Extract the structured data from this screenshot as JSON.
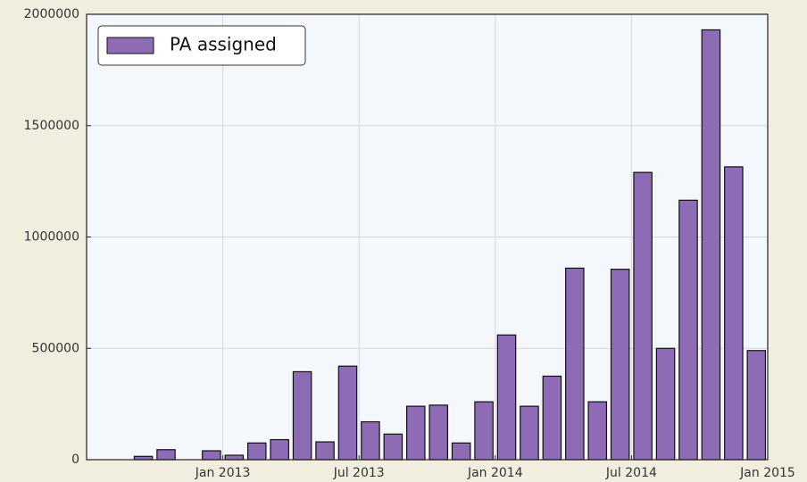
{
  "chart_data": {
    "type": "bar",
    "series": [
      {
        "name": "PA assigned",
        "color": "#8e6bb5",
        "x": [
          "2012-09",
          "2012-10",
          "2012-11",
          "2012-12",
          "2013-01",
          "2013-02",
          "2013-03",
          "2013-04",
          "2013-05",
          "2013-06",
          "2013-07",
          "2013-08",
          "2013-09",
          "2013-10",
          "2013-11",
          "2013-12",
          "2014-01",
          "2014-02",
          "2014-03",
          "2014-04",
          "2014-05",
          "2014-06",
          "2014-07",
          "2014-08",
          "2014-09",
          "2014-10",
          "2014-11",
          "2014-12"
        ],
        "values": [
          15000,
          45000,
          0,
          40000,
          20000,
          75000,
          90000,
          395000,
          80000,
          420000,
          170000,
          115000,
          240000,
          245000,
          75000,
          260000,
          560000,
          240000,
          375000,
          860000,
          260000,
          855000,
          1290000,
          500000,
          1165000,
          1930000,
          1315000,
          490000
        ]
      }
    ],
    "xlim": [
      "2012-07",
      "2015-01"
    ],
    "xticks": [
      {
        "value": "2013-01",
        "label": "Jan 2013"
      },
      {
        "value": "2013-07",
        "label": "Jul 2013"
      },
      {
        "value": "2014-01",
        "label": "Jan 2014"
      },
      {
        "value": "2014-07",
        "label": "Jul 2014"
      },
      {
        "value": "2015-01",
        "label": "Jan 2015"
      }
    ],
    "ylim": [
      0,
      2000000
    ],
    "yticks": [
      0,
      500000,
      1000000,
      1500000,
      2000000
    ],
    "grid": true,
    "legend": "upper left"
  }
}
